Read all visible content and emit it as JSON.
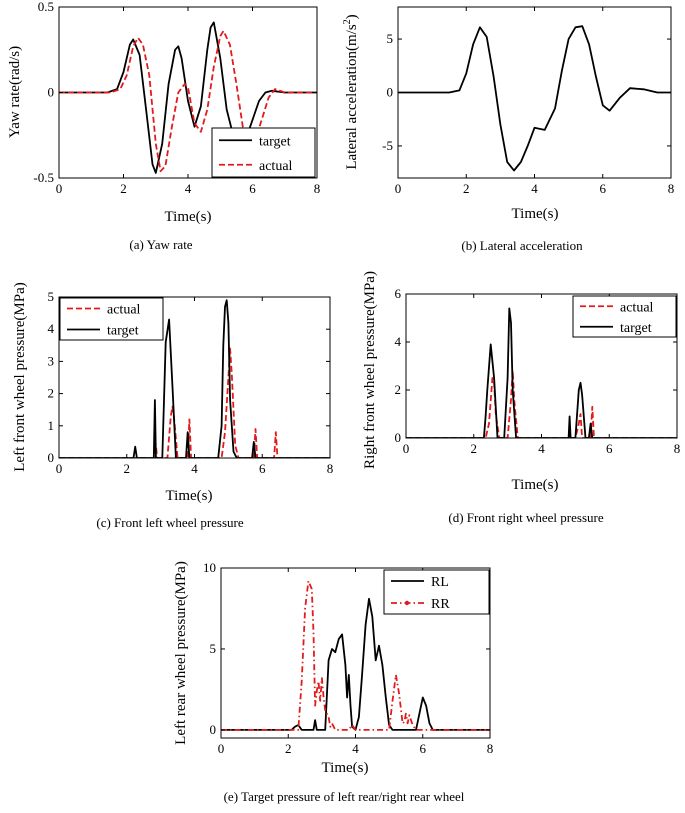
{
  "chart_data": [
    {
      "type": "line",
      "caption": "(a)  Yaw rate",
      "xlabel": "Time(s)",
      "ylabel": "Yaw rate(rad/s)",
      "xlim": [
        0,
        8
      ],
      "ylim": [
        -0.5,
        0.5
      ],
      "xticks": [
        "0",
        "2",
        "4",
        "6",
        "8"
      ],
      "yticks": [
        "-0.5",
        "0",
        "0.5"
      ],
      "legend_position": "bottom-right",
      "series": [
        {
          "name": "target",
          "color": "#000000",
          "dash": "solid",
          "x": [
            0,
            1.5,
            1.8,
            2.0,
            2.2,
            2.3,
            2.5,
            2.7,
            2.9,
            3.0,
            3.2,
            3.4,
            3.6,
            3.7,
            3.8,
            4.0,
            4.2,
            4.4,
            4.6,
            4.7,
            4.8,
            5.0,
            5.2,
            5.4,
            5.6,
            5.8,
            6.0,
            6.2,
            6.4,
            6.6,
            7.0,
            8.0
          ],
          "y": [
            0,
            0,
            0.02,
            0.12,
            0.28,
            0.31,
            0.22,
            -0.1,
            -0.42,
            -0.47,
            -0.3,
            0.05,
            0.25,
            0.27,
            0.2,
            -0.05,
            -0.2,
            -0.08,
            0.25,
            0.38,
            0.41,
            0.2,
            -0.1,
            -0.25,
            -0.3,
            -0.27,
            -0.16,
            -0.05,
            0,
            0.01,
            0,
            0
          ]
        },
        {
          "name": "actual",
          "color": "#e31a1c",
          "dash": "dashed",
          "x": [
            0,
            1.6,
            1.9,
            2.1,
            2.3,
            2.45,
            2.6,
            2.8,
            3.0,
            3.15,
            3.3,
            3.5,
            3.7,
            3.9,
            4.0,
            4.2,
            4.4,
            4.6,
            4.8,
            5.0,
            5.1,
            5.3,
            5.5,
            5.7,
            5.9,
            6.1,
            6.3,
            6.5,
            6.7,
            7.0,
            8.0
          ],
          "y": [
            0,
            0,
            0.02,
            0.1,
            0.27,
            0.32,
            0.28,
            0.1,
            -0.3,
            -0.46,
            -0.43,
            -0.2,
            0,
            0.05,
            0.03,
            -0.18,
            -0.23,
            -0.1,
            0.15,
            0.33,
            0.36,
            0.28,
            0.05,
            -0.2,
            -0.3,
            -0.27,
            -0.15,
            -0.03,
            0.02,
            0,
            0
          ]
        }
      ]
    },
    {
      "type": "line",
      "caption": "(b)  Lateral acceleration",
      "xlabel": "Time(s)",
      "ylabel": "Lateral acceleration(m/s",
      "ylabel_sup": "2",
      "ylabel_end": ")",
      "xlim": [
        0,
        8
      ],
      "ylim": [
        -8,
        8
      ],
      "xticks": [
        "0",
        "2",
        "4",
        "6",
        "8"
      ],
      "yticks": [
        "-5",
        "0",
        "5"
      ],
      "series": [
        {
          "name": "",
          "color": "#000000",
          "dash": "solid",
          "x": [
            0,
            1.5,
            1.8,
            2.0,
            2.2,
            2.4,
            2.6,
            2.8,
            3.0,
            3.2,
            3.4,
            3.6,
            3.8,
            4.0,
            4.3,
            4.6,
            4.8,
            5.0,
            5.2,
            5.4,
            5.6,
            5.8,
            6.0,
            6.2,
            6.5,
            6.8,
            7.2,
            7.6,
            8.0
          ],
          "y": [
            0,
            0,
            0.2,
            1.8,
            4.5,
            6.1,
            5.2,
            1.5,
            -3.0,
            -6.5,
            -7.3,
            -6.5,
            -5.0,
            -3.3,
            -3.5,
            -1.5,
            2.0,
            5.0,
            6.1,
            6.2,
            4.5,
            1.5,
            -1.2,
            -1.7,
            -0.5,
            0.4,
            0.3,
            0,
            0
          ]
        }
      ]
    },
    {
      "type": "line",
      "caption": "(c)  Front left wheel pressure",
      "xlabel": "Time(s)",
      "ylabel": "Left front wheel pressure(MPa)",
      "xlim": [
        0,
        8
      ],
      "ylim": [
        0,
        5
      ],
      "xticks": [
        "0",
        "2",
        "4",
        "6",
        "8"
      ],
      "yticks": [
        "0",
        "1",
        "2",
        "3",
        "4",
        "5"
      ],
      "legend_position": "top-left",
      "series": [
        {
          "name": "actual",
          "color": "#e31a1c",
          "dash": "dashed",
          "x": [
            0,
            0.8,
            2.8,
            2.85,
            2.9,
            3.0,
            3.2,
            3.3,
            3.35,
            3.4,
            3.5,
            3.8,
            3.85,
            3.9,
            4.8,
            4.9,
            5.0,
            5.05,
            5.1,
            5.2,
            5.3,
            5.75,
            5.8,
            5.85,
            6.35,
            6.4,
            6.45,
            8.0
          ],
          "y": [
            0,
            0,
            0,
            0.5,
            0,
            0,
            0,
            1.3,
            1.6,
            1.2,
            0,
            0,
            1.2,
            0,
            0,
            0.8,
            2.5,
            3.4,
            2.6,
            0.4,
            0,
            0,
            0.9,
            0,
            0,
            0.8,
            0,
            0
          ]
        },
        {
          "name": "target",
          "color": "#000000",
          "dash": "solid",
          "x": [
            0,
            2.2,
            2.25,
            2.3,
            2.8,
            2.83,
            2.86,
            3.05,
            3.15,
            3.25,
            3.35,
            3.45,
            3.75,
            3.8,
            3.85,
            4.7,
            4.8,
            4.85,
            4.9,
            4.95,
            5.0,
            5.05,
            5.15,
            5.25,
            5.7,
            5.75,
            5.8,
            8.0
          ],
          "y": [
            0,
            0,
            0.35,
            0,
            0,
            1.8,
            0,
            0,
            3.6,
            4.3,
            2.2,
            0,
            0,
            0.8,
            0,
            0,
            1.0,
            3.5,
            4.7,
            4.9,
            4.2,
            1.8,
            0.2,
            0,
            0,
            0.5,
            0,
            0
          ]
        }
      ]
    },
    {
      "type": "line",
      "caption": "(d)  Front right wheel pressure",
      "xlabel": "Time(s)",
      "ylabel": "Right front wheel pressure(MPa)",
      "xlim": [
        0,
        8
      ],
      "ylim": [
        0,
        6
      ],
      "xticks": [
        "0",
        "2",
        "4",
        "6",
        "8"
      ],
      "yticks": [
        "0",
        "2",
        "4",
        "6"
      ],
      "legend_position": "top-right",
      "series": [
        {
          "name": "actual",
          "color": "#e31a1c",
          "dash": "dashed",
          "x": [
            0,
            2.35,
            2.45,
            2.55,
            2.6,
            2.65,
            2.75,
            3.0,
            3.1,
            3.15,
            3.2,
            3.3,
            5.0,
            5.1,
            5.15,
            5.2,
            5.45,
            5.5,
            5.55,
            8.0
          ],
          "y": [
            0,
            0,
            0.6,
            2.5,
            2.3,
            1.0,
            0,
            0,
            1.6,
            2.8,
            1.5,
            0,
            0,
            0.6,
            1.0,
            0,
            0,
            1.3,
            0,
            0
          ]
        },
        {
          "name": "target",
          "color": "#000000",
          "dash": "solid",
          "x": [
            0,
            2.3,
            2.35,
            2.4,
            2.5,
            2.6,
            2.7,
            2.9,
            3.0,
            3.05,
            3.1,
            3.15,
            3.25,
            4.8,
            4.83,
            4.86,
            5.0,
            5.1,
            5.15,
            5.2,
            5.3,
            5.4,
            5.45,
            5.5,
            8.0
          ],
          "y": [
            0,
            0,
            0.9,
            2.0,
            3.9,
            2.5,
            0,
            0,
            2.5,
            5.4,
            4.8,
            2.0,
            0,
            0,
            0.9,
            0,
            0,
            2.0,
            2.3,
            1.8,
            0,
            0,
            0.6,
            0,
            0
          ]
        }
      ]
    },
    {
      "type": "line",
      "caption": "(e)  Target pressure of left rear/right rear wheel",
      "xlabel": "Time(s)",
      "ylabel": "Left rear wheel pressure(MPa)",
      "xlim": [
        0,
        8
      ],
      "ylim": [
        -0.5,
        10
      ],
      "xticks": [
        "0",
        "2",
        "4",
        "6",
        "8"
      ],
      "yticks": [
        "0",
        "5",
        "10"
      ],
      "legend_position": "top-right",
      "series": [
        {
          "name": "RL",
          "color": "#000000",
          "dash": "solid",
          "x": [
            0,
            2.1,
            2.2,
            2.3,
            2.4,
            2.75,
            2.8,
            2.85,
            3.1,
            3.2,
            3.3,
            3.4,
            3.5,
            3.6,
            3.7,
            3.75,
            3.8,
            3.85,
            3.9,
            4.0,
            4.1,
            4.2,
            4.3,
            4.4,
            4.5,
            4.6,
            4.7,
            4.8,
            4.9,
            5.0,
            5.1,
            5.8,
            5.9,
            6.0,
            6.1,
            6.2,
            6.3,
            8.0
          ],
          "y": [
            0,
            0,
            0.2,
            0.3,
            0,
            0,
            0.6,
            0,
            0,
            4.3,
            5.0,
            4.8,
            5.6,
            5.9,
            4.0,
            2.0,
            3.4,
            1.5,
            0.2,
            0,
            0.8,
            3.5,
            6.5,
            8.1,
            7.0,
            4.3,
            5.2,
            4.0,
            2.0,
            0.3,
            0,
            0,
            1.0,
            2.0,
            1.5,
            0.4,
            0,
            0
          ]
        },
        {
          "name": "RR",
          "color": "#e31a1c",
          "dash": "dashdot",
          "x": [
            0,
            2.3,
            2.4,
            2.5,
            2.6,
            2.7,
            2.75,
            2.8,
            2.85,
            2.9,
            2.95,
            3.0,
            3.05,
            3.1,
            3.15,
            3.2,
            3.25,
            3.3,
            3.4,
            3.8,
            3.9,
            4.0,
            5.0,
            5.1,
            5.2,
            5.3,
            5.4,
            5.45,
            5.5,
            5.55,
            5.6,
            5.7,
            5.8,
            8.0
          ],
          "y": [
            0,
            0,
            3.0,
            7.5,
            9.2,
            8.7,
            6.0,
            1.5,
            2.4,
            3.0,
            1.8,
            3.2,
            2.0,
            1.2,
            1.0,
            0.8,
            0.2,
            0.4,
            0,
            0,
            0.3,
            0,
            0,
            1.8,
            3.4,
            2.2,
            0.4,
            0.5,
            1.0,
            0.4,
            0.9,
            0.3,
            0,
            0
          ]
        }
      ]
    }
  ]
}
